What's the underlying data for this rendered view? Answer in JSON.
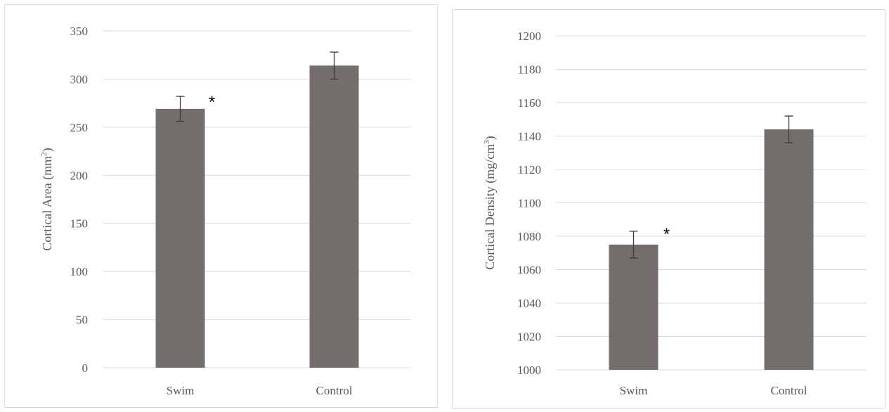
{
  "colors": {
    "bar": "#746e6d",
    "grid": "#d9d9d9",
    "text": "#595959",
    "errorbar": "#3a3a3a"
  },
  "chart_data": [
    {
      "type": "bar",
      "categories": [
        "Swim",
        "Control"
      ],
      "values": [
        269,
        314
      ],
      "error": [
        13,
        14
      ],
      "ylabel": "Cortical Area (mm",
      "ylabel_sup": "2",
      "ylabel_close": ")",
      "ylim": [
        0,
        350
      ],
      "yticks": [
        0,
        50,
        100,
        150,
        200,
        250,
        300,
        350
      ],
      "grid": true,
      "annotations": [
        {
          "category": "Swim",
          "text": "*"
        }
      ]
    },
    {
      "type": "bar",
      "categories": [
        "Swim",
        "Control"
      ],
      "values": [
        1075,
        1144
      ],
      "error": [
        8,
        8
      ],
      "ylabel": "Cortical Density (mg/cm",
      "ylabel_sup": "3",
      "ylabel_close": ")",
      "ylim": [
        1000,
        1200
      ],
      "yticks": [
        1000,
        1020,
        1040,
        1060,
        1080,
        1100,
        1120,
        1140,
        1160,
        1180,
        1200
      ],
      "grid": true,
      "annotations": [
        {
          "category": "Swim",
          "text": "*"
        }
      ]
    }
  ]
}
